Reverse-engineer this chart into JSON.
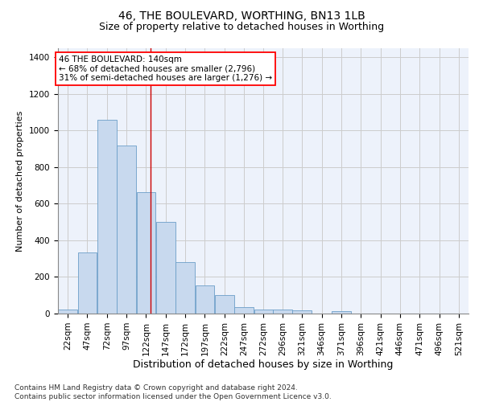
{
  "title": "46, THE BOULEVARD, WORTHING, BN13 1LB",
  "subtitle": "Size of property relative to detached houses in Worthing",
  "xlabel": "Distribution of detached houses by size in Worthing",
  "ylabel": "Number of detached properties",
  "footnote": "Contains HM Land Registry data © Crown copyright and database right 2024.\nContains public sector information licensed under the Open Government Licence v3.0.",
  "annotation_line1": "46 THE BOULEVARD: 140sqm",
  "annotation_line2": "← 68% of detached houses are smaller (2,796)",
  "annotation_line3": "31% of semi-detached houses are larger (1,276) →",
  "bar_color": "#c8d9ee",
  "bar_edge_color": "#6b9ec8",
  "vline_color": "#cc0000",
  "vline_x": 140,
  "categories": [
    "22sqm",
    "47sqm",
    "72sqm",
    "97sqm",
    "122sqm",
    "147sqm",
    "172sqm",
    "197sqm",
    "222sqm",
    "247sqm",
    "272sqm",
    "296sqm",
    "321sqm",
    "346sqm",
    "371sqm",
    "396sqm",
    "421sqm",
    "446sqm",
    "471sqm",
    "496sqm",
    "521sqm"
  ],
  "bin_left_edges": [
    22,
    47,
    72,
    97,
    122,
    147,
    172,
    197,
    222,
    247,
    272,
    296,
    321,
    346,
    371,
    396,
    421,
    446,
    471,
    496,
    521
  ],
  "bar_heights": [
    20,
    335,
    1060,
    920,
    665,
    500,
    280,
    155,
    103,
    37,
    24,
    24,
    17,
    0,
    12,
    0,
    0,
    0,
    0,
    0,
    0
  ],
  "bin_width": 25,
  "ylim": [
    0,
    1450
  ],
  "yticks": [
    0,
    200,
    400,
    600,
    800,
    1000,
    1200,
    1400
  ],
  "grid_color": "#cccccc",
  "background_color": "#edf2fb",
  "fig_background": "#ffffff",
  "title_fontsize": 10,
  "subtitle_fontsize": 9,
  "xlabel_fontsize": 9,
  "ylabel_fontsize": 8,
  "tick_fontsize": 7.5,
  "annot_fontsize": 7.5,
  "footnote_fontsize": 6.5
}
